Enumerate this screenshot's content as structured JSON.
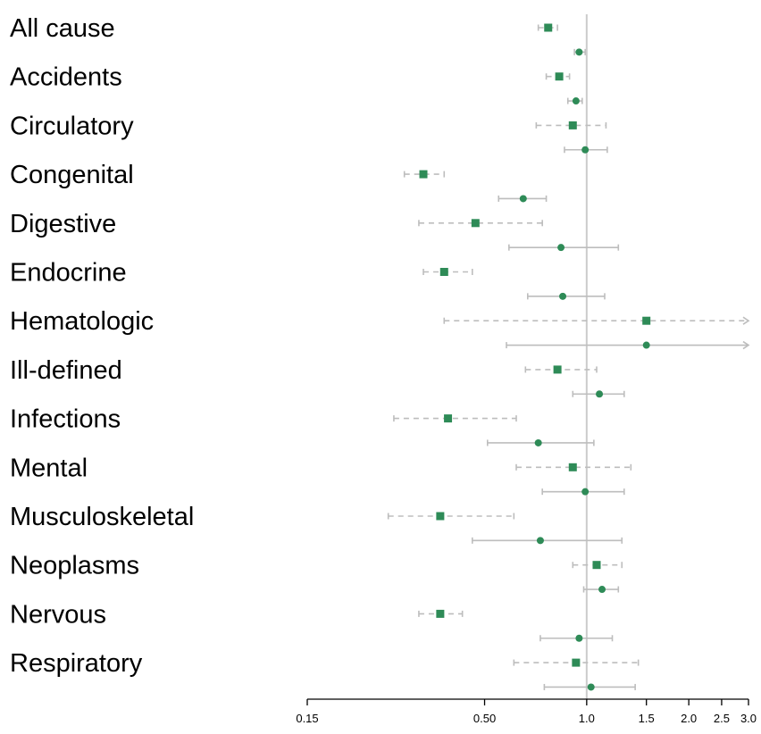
{
  "chart_data": {
    "type": "forest",
    "scale": "log",
    "xlim": [
      0.15,
      3.0
    ],
    "reference_line": 1.0,
    "ticks": [
      {
        "value": 0.15,
        "label": "0.15"
      },
      {
        "value": 0.5,
        "label": "0.50"
      },
      {
        "value": 1.0,
        "label": "1.0"
      },
      {
        "value": 1.5,
        "label": "1.5"
      },
      {
        "value": 2.0,
        "label": "2.0"
      },
      {
        "value": 2.5,
        "label": "2.5"
      },
      {
        "value": 3.0,
        "label": "3.0"
      }
    ],
    "line_styles": {
      "square_marker": "dashed",
      "circle_marker": "solid"
    },
    "colors": {
      "point": "#2e8b57",
      "interval": "#bdbdbd",
      "reference": "#cccccc",
      "axis": "#000000"
    },
    "groups": [
      {
        "label": "All cause",
        "rows": [
          {
            "marker": "square",
            "estimate": 0.77,
            "lower": 0.72,
            "upper": 0.82,
            "upper_arrow": false
          },
          {
            "marker": "circle",
            "estimate": 0.95,
            "lower": 0.92,
            "upper": 0.99,
            "upper_arrow": false
          }
        ]
      },
      {
        "label": "Accidents",
        "rows": [
          {
            "marker": "square",
            "estimate": 0.83,
            "lower": 0.76,
            "upper": 0.89,
            "upper_arrow": false
          },
          {
            "marker": "circle",
            "estimate": 0.93,
            "lower": 0.88,
            "upper": 0.97,
            "upper_arrow": false
          }
        ]
      },
      {
        "label": "Circulatory",
        "rows": [
          {
            "marker": "square",
            "estimate": 0.91,
            "lower": 0.71,
            "upper": 1.14,
            "upper_arrow": false
          },
          {
            "marker": "circle",
            "estimate": 0.99,
            "lower": 0.86,
            "upper": 1.15,
            "upper_arrow": false
          }
        ]
      },
      {
        "label": "Congenital",
        "rows": [
          {
            "marker": "square",
            "estimate": 0.33,
            "lower": 0.29,
            "upper": 0.38,
            "upper_arrow": false
          },
          {
            "marker": "circle",
            "estimate": 0.65,
            "lower": 0.55,
            "upper": 0.76,
            "upper_arrow": false
          }
        ]
      },
      {
        "label": "Digestive",
        "rows": [
          {
            "marker": "square",
            "estimate": 0.47,
            "lower": 0.32,
            "upper": 0.74,
            "upper_arrow": false
          },
          {
            "marker": "circle",
            "estimate": 0.84,
            "lower": 0.59,
            "upper": 1.24,
            "upper_arrow": false
          }
        ]
      },
      {
        "label": "Endocrine",
        "rows": [
          {
            "marker": "square",
            "estimate": 0.38,
            "lower": 0.33,
            "upper": 0.46,
            "upper_arrow": false
          },
          {
            "marker": "circle",
            "estimate": 0.85,
            "lower": 0.67,
            "upper": 1.13,
            "upper_arrow": false
          }
        ]
      },
      {
        "label": "Hematologic",
        "rows": [
          {
            "marker": "square",
            "estimate": 1.5,
            "lower": 0.38,
            "upper": 3.0,
            "upper_arrow": true
          },
          {
            "marker": "circle",
            "estimate": 1.5,
            "lower": 0.58,
            "upper": 3.0,
            "upper_arrow": true
          }
        ]
      },
      {
        "label": "Ill-defined",
        "rows": [
          {
            "marker": "square",
            "estimate": 0.82,
            "lower": 0.66,
            "upper": 1.07,
            "upper_arrow": false
          },
          {
            "marker": "circle",
            "estimate": 1.09,
            "lower": 0.91,
            "upper": 1.29,
            "upper_arrow": false
          }
        ]
      },
      {
        "label": "Infections",
        "rows": [
          {
            "marker": "square",
            "estimate": 0.39,
            "lower": 0.27,
            "upper": 0.62,
            "upper_arrow": false
          },
          {
            "marker": "circle",
            "estimate": 0.72,
            "lower": 0.51,
            "upper": 1.05,
            "upper_arrow": false
          }
        ]
      },
      {
        "label": "Mental",
        "rows": [
          {
            "marker": "square",
            "estimate": 0.91,
            "lower": 0.62,
            "upper": 1.35,
            "upper_arrow": false
          },
          {
            "marker": "circle",
            "estimate": 0.99,
            "lower": 0.74,
            "upper": 1.29,
            "upper_arrow": false
          }
        ]
      },
      {
        "label": "Musculoskeletal",
        "rows": [
          {
            "marker": "square",
            "estimate": 0.37,
            "lower": 0.26,
            "upper": 0.61,
            "upper_arrow": false
          },
          {
            "marker": "circle",
            "estimate": 0.73,
            "lower": 0.46,
            "upper": 1.27,
            "upper_arrow": false
          }
        ]
      },
      {
        "label": "Neoplasms",
        "rows": [
          {
            "marker": "square",
            "estimate": 1.07,
            "lower": 0.91,
            "upper": 1.27,
            "upper_arrow": false
          },
          {
            "marker": "circle",
            "estimate": 1.11,
            "lower": 0.98,
            "upper": 1.24,
            "upper_arrow": false
          }
        ]
      },
      {
        "label": "Nervous",
        "rows": [
          {
            "marker": "square",
            "estimate": 0.37,
            "lower": 0.32,
            "upper": 0.43,
            "upper_arrow": false
          },
          {
            "marker": "circle",
            "estimate": 0.95,
            "lower": 0.73,
            "upper": 1.19,
            "upper_arrow": false
          }
        ]
      },
      {
        "label": "Respiratory",
        "rows": [
          {
            "marker": "square",
            "estimate": 0.93,
            "lower": 0.61,
            "upper": 1.42,
            "upper_arrow": false
          },
          {
            "marker": "circle",
            "estimate": 1.03,
            "lower": 0.75,
            "upper": 1.39,
            "upper_arrow": false
          }
        ]
      }
    ]
  }
}
